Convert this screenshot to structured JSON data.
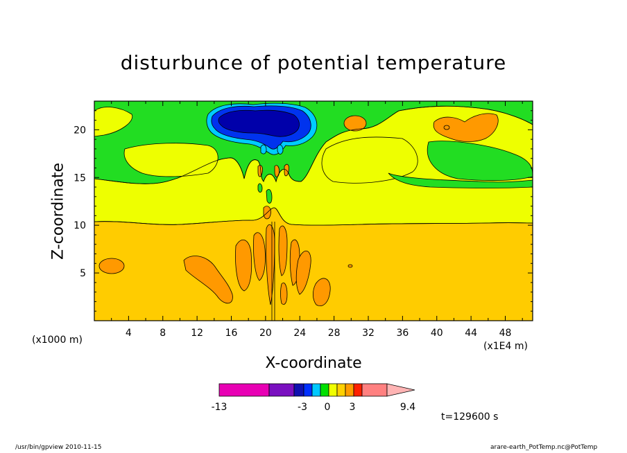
{
  "chart_data": {
    "type": "heatmap",
    "title": "disturbunce of potential temperature",
    "xlabel": "X-coordinate",
    "ylabel": "Z-coordinate",
    "x_unit_label": "(x1000 m)",
    "x_multiplier_label": "(x1E4 m)",
    "x_ticks": [
      "4",
      "8",
      "12",
      "16",
      "20",
      "24",
      "28",
      "32",
      "36",
      "40",
      "44",
      "48"
    ],
    "y_ticks": [
      "5",
      "10",
      "15",
      "20"
    ],
    "xlim": [
      0,
      51.2
    ],
    "ylim": [
      0,
      23
    ],
    "colorbar": {
      "tick_labels": [
        "-13",
        "-3",
        "0",
        "3",
        "9.4"
      ],
      "colors": [
        "#e800b4",
        "#7a10c0",
        "#1010b0",
        "#0030ff",
        "#00c8ff",
        "#00e000",
        "#f0ff00",
        "#ffd000",
        "#ff9c00",
        "#ff2000",
        "#ff8080",
        "#ffb4b4"
      ]
    },
    "time_label": "t=129600 s",
    "level_colors": {
      "upper_band": "#22dd22",
      "middle_band": "#eeff00",
      "lower_band": "#ffcc00",
      "warm_cells": "#ff9900",
      "cold_core": "#0000aa",
      "cold_mid": "#0033ee",
      "cold_edge": "#00ccff"
    }
  },
  "footer": {
    "left": "/usr/bin/gpview   2010-11-15",
    "right": "arare-earth_PotTemp.nc@PotTemp"
  }
}
